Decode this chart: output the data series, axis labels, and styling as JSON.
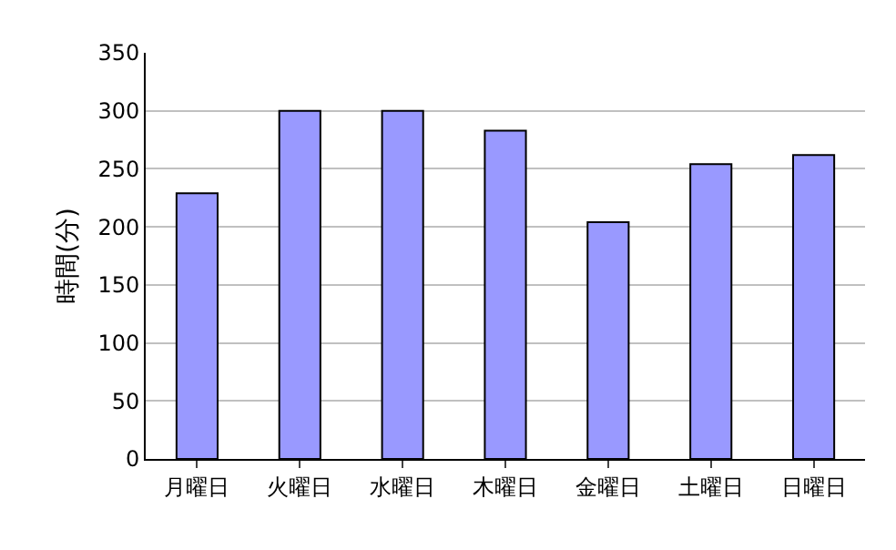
{
  "chart_data": {
    "type": "bar",
    "ylabel": "時間(分)",
    "categories": [
      "月曜日",
      "火曜日",
      "水曜日",
      "木曜日",
      "金曜日",
      "土曜日",
      "日曜日"
    ],
    "values": [
      229,
      300,
      300,
      283,
      204,
      254,
      262
    ],
    "color": "#9999ff",
    "ylim": [
      0,
      350
    ],
    "yticks": [
      0,
      50,
      100,
      150,
      200,
      250,
      300,
      350
    ],
    "grid": "y",
    "legend": false
  }
}
